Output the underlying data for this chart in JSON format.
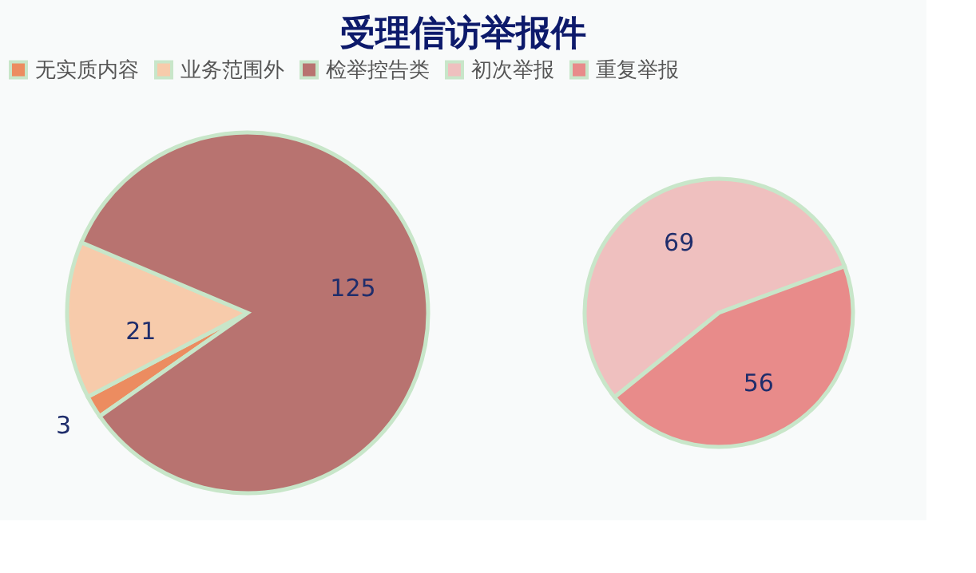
{
  "chart_data": [
    {
      "type": "pie",
      "title": "受理信访举报件",
      "categories": [
        "无实质内容",
        "业务范围外",
        "检举控告类"
      ],
      "values": [
        3,
        21,
        125
      ],
      "colors": [
        "#ec8c60",
        "#f7cbab",
        "#b87370"
      ],
      "data_labels": true,
      "legend": "top"
    },
    {
      "type": "pie",
      "categories": [
        "初次举报",
        "重复举报"
      ],
      "values": [
        69,
        56
      ],
      "colors": [
        "#efc0bf",
        "#e88b8a"
      ],
      "data_labels": true,
      "legend": "top"
    }
  ]
}
